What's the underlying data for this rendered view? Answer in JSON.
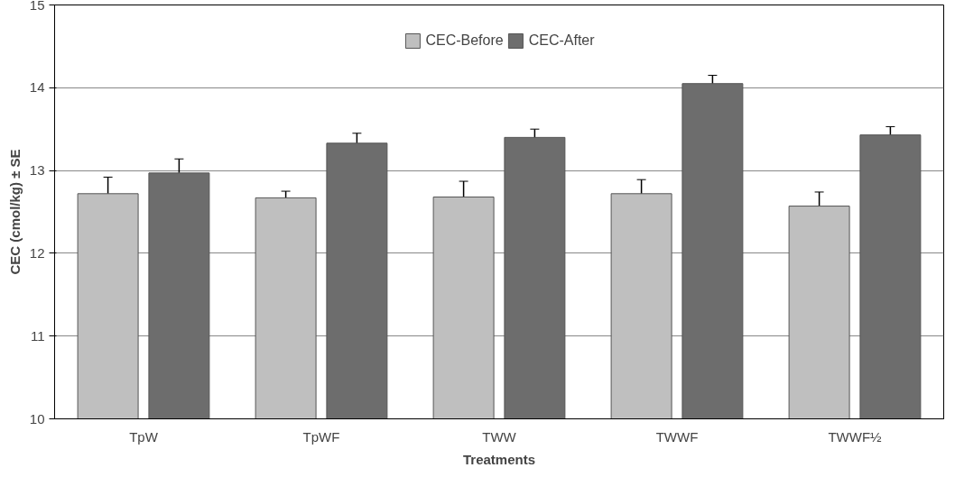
{
  "chart_data": {
    "type": "bar",
    "xlabel": "Treatments",
    "ylabel": "CEC (cmol/kg) ± SE",
    "categories": [
      "TpW",
      "TpWF",
      "TWW",
      "TWWF",
      "TWWF½"
    ],
    "series": [
      {
        "name": "CEC-Before",
        "color": "#bfbfbf",
        "values": [
          12.72,
          12.67,
          12.68,
          12.72,
          12.57
        ],
        "errors": [
          0.2,
          0.08,
          0.19,
          0.17,
          0.17
        ]
      },
      {
        "name": "CEC-After",
        "color": "#6d6d6d",
        "values": [
          12.97,
          13.33,
          13.4,
          14.05,
          13.43
        ],
        "errors": [
          0.17,
          0.12,
          0.1,
          0.1,
          0.1
        ]
      }
    ],
    "ylim": [
      10,
      15
    ],
    "yticks": [
      10,
      11,
      12,
      13,
      14,
      15
    ],
    "grid": "y",
    "legend": "top"
  }
}
